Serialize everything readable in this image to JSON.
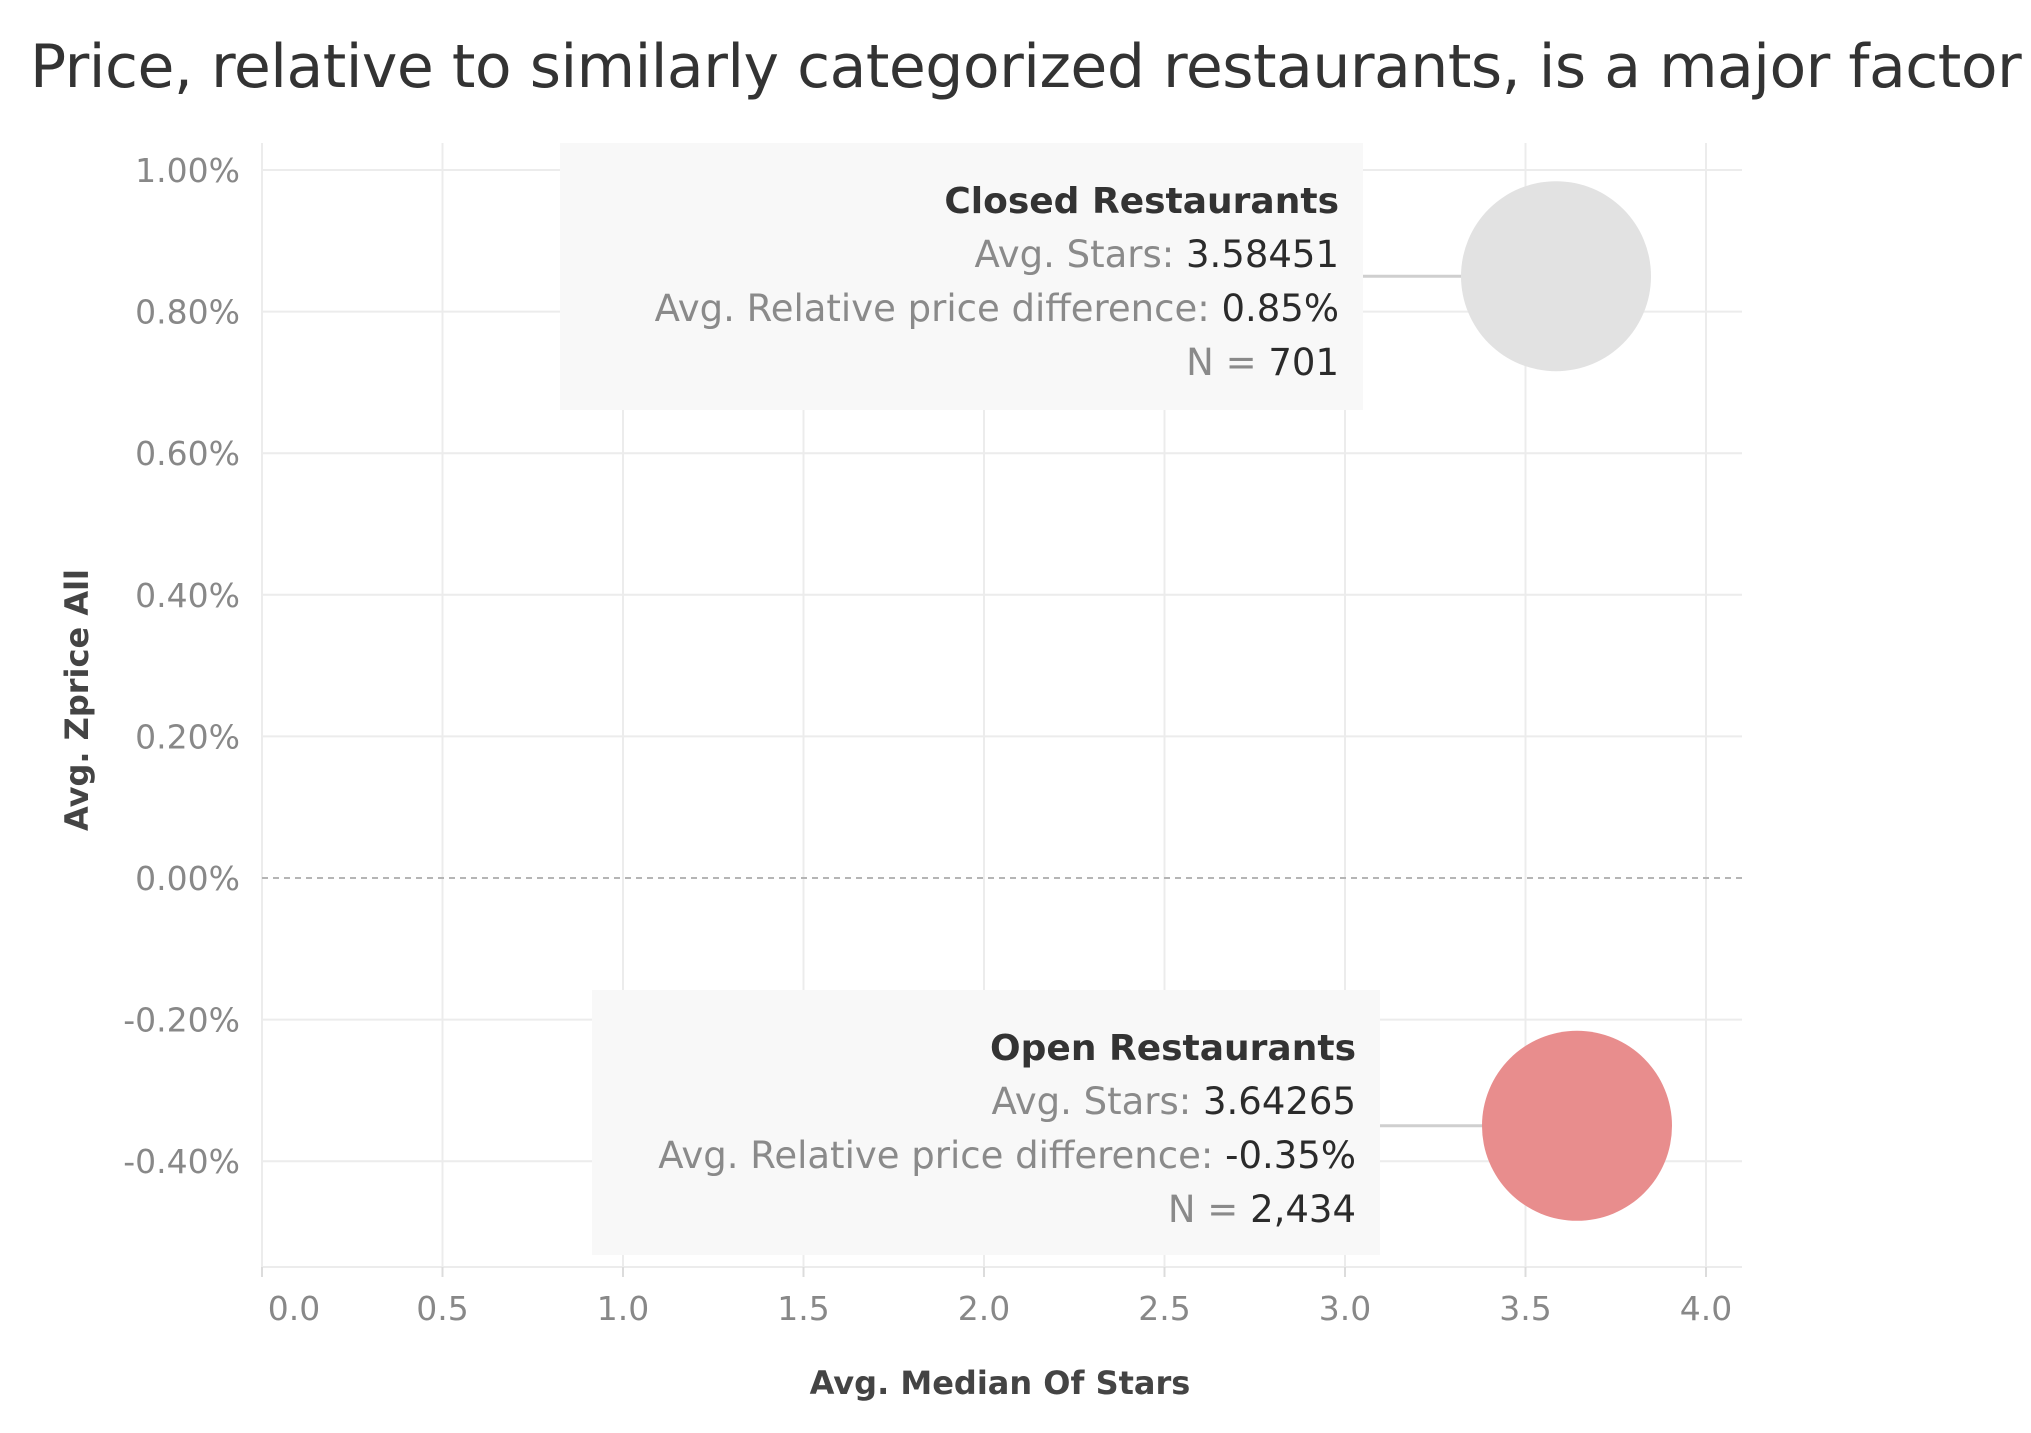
{
  "chart_data": {
    "type": "scatter",
    "title": "Price, relative to similarly categorized restaurants, is a major factor",
    "xlabel": "Avg. Median Of Stars",
    "ylabel": "Avg. Zprice All",
    "xlim": [
      0,
      4.1
    ],
    "ylim": [
      -0.5,
      1.0
    ],
    "x_ticks": [
      0.0,
      0.5,
      1.0,
      1.5,
      2.0,
      2.5,
      3.0,
      3.5,
      4.0
    ],
    "x_tick_labels": [
      "0.0",
      "0.5",
      "1.0",
      "1.5",
      "2.0",
      "2.5",
      "3.0",
      "3.5",
      "4.0"
    ],
    "y_ticks": [
      1.0,
      0.8,
      0.6,
      0.4,
      0.2,
      0.0,
      -0.2,
      -0.4
    ],
    "y_tick_labels": [
      "1.00%",
      "0.80%",
      "0.60%",
      "0.40%",
      "0.20%",
      "0.00%",
      "-0.20%",
      "-0.40%"
    ],
    "grid": true,
    "reference_line_y": 0.0,
    "series": [
      {
        "name": "Closed Restaurants",
        "x": 3.58451,
        "y": 0.85,
        "color": "#e2e2e2",
        "annotation": {
          "title": "Closed Restaurants",
          "stars_label": "Avg. Stars:",
          "stars_value": "3.58451",
          "price_label": "Avg. Relative price difference:",
          "price_value": "0.85%",
          "n_label": "N =",
          "n_value": "701"
        }
      },
      {
        "name": "Open Restaurants",
        "x": 3.64265,
        "y": -0.35,
        "color": "#e88d8d",
        "annotation": {
          "title": "Open Restaurants",
          "stars_label": "Avg. Stars:",
          "stars_value": "3.64265",
          "price_label": "Avg. Relative price difference:",
          "price_value": "-0.35%",
          "n_label": "N =",
          "n_value": "2,434"
        }
      }
    ]
  },
  "colors": {
    "grid": "#ececec",
    "reference_line": "#b5b5b5",
    "tooltip_bg": "#f8f8f8",
    "connector": "#cfcfcf"
  }
}
